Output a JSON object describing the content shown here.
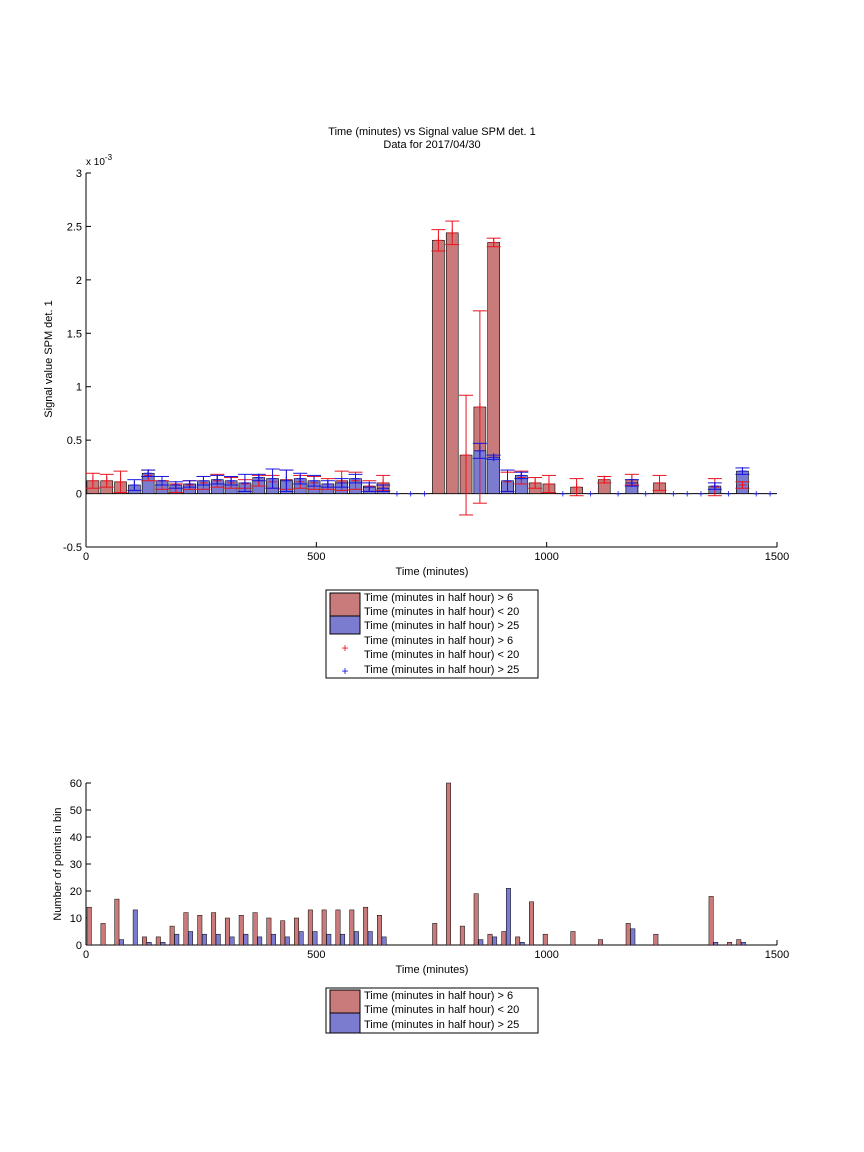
{
  "chart_data": [
    {
      "type": "bar",
      "title": "Time (minutes) vs Signal value SPM det. 1",
      "subtitle": "Data for 2017/04/30",
      "xlabel": "Time (minutes)",
      "ylabel": "Signal value SPM det. 1",
      "y_exponent_label": "x 10",
      "y_exponent_power": "-3",
      "xlim": [
        0,
        1500
      ],
      "ylim": [
        -0.5,
        3
      ],
      "x_ticks": [
        "0",
        "500",
        "1000",
        "1500"
      ],
      "y_ticks": [
        "-0.5",
        "0",
        "0.5",
        "1",
        "1.5",
        "2",
        "2.5",
        "3"
      ],
      "grid": false,
      "legend_position": "below",
      "legend": [
        "Time (minutes in half hour) > 6",
        "Time (minutes in half hour) < 20",
        "Time (minutes in half hour) > 25",
        "Time (minutes in half hour) > 6",
        "Time (minutes in half hour) < 20",
        "Time (minutes in half hour) > 25"
      ],
      "colors": {
        "red_bar": "#c97b7b",
        "blue_bar": "#7b7bd0",
        "red_marker": "#e8141e",
        "blue_marker": "#1414e0"
      },
      "series": [
        {
          "values": [
            [
              15,
              0.12,
              0.07
            ],
            [
              45,
              0.12,
              0.06
            ],
            [
              75,
              0.11,
              0.1
            ],
            [
              135,
              0.17,
              0.05
            ],
            [
              165,
              0.08,
              0.04
            ],
            [
              195,
              0.05,
              0.04
            ],
            [
              225,
              0.08,
              0.04
            ],
            [
              255,
              0.1,
              0.06
            ],
            [
              285,
              0.12,
              0.06
            ],
            [
              315,
              0.1,
              0.05
            ],
            [
              345,
              0.09,
              0.04
            ],
            [
              375,
              0.12,
              0.05
            ],
            [
              405,
              0.11,
              0.06
            ],
            [
              435,
              0.13,
              0.09
            ],
            [
              465,
              0.11,
              0.06
            ],
            [
              495,
              0.1,
              0.06
            ],
            [
              525,
              0.09,
              0.05
            ],
            [
              555,
              0.12,
              0.09
            ],
            [
              585,
              0.12,
              0.08
            ],
            [
              615,
              0.07,
              0.05
            ],
            [
              645,
              0.1,
              0.07
            ],
            [
              765,
              2.37,
              0.1
            ],
            [
              795,
              2.44,
              0.11
            ],
            [
              825,
              0.36,
              0.56
            ],
            [
              855,
              0.81,
              0.9
            ],
            [
              885,
              2.35,
              0.04
            ],
            [
              915,
              0.11,
              0.09
            ],
            [
              945,
              0.15,
              0.06
            ],
            [
              975,
              0.1,
              0.05
            ],
            [
              1005,
              0.09,
              0.08
            ],
            [
              1065,
              0.06,
              0.08
            ],
            [
              1125,
              0.13,
              0.03
            ],
            [
              1185,
              0.13,
              0.05
            ],
            [
              1245,
              0.1,
              0.07
            ],
            [
              1365,
              0.06,
              0.08
            ],
            [
              1425,
              0.08,
              0.03
            ]
          ]
        },
        {
          "values": [
            [
              105,
              0.08,
              0.05
            ],
            [
              135,
              0.19,
              0.03
            ],
            [
              165,
              0.12,
              0.04
            ],
            [
              195,
              0.08,
              0.03
            ],
            [
              225,
              0.09,
              0.03
            ],
            [
              255,
              0.12,
              0.04
            ],
            [
              285,
              0.13,
              0.04
            ],
            [
              315,
              0.12,
              0.04
            ],
            [
              345,
              0.1,
              0.08
            ],
            [
              375,
              0.15,
              0.03
            ],
            [
              405,
              0.14,
              0.09
            ],
            [
              435,
              0.12,
              0.1
            ],
            [
              465,
              0.14,
              0.05
            ],
            [
              495,
              0.12,
              0.05
            ],
            [
              525,
              0.09,
              0.03
            ],
            [
              555,
              0.1,
              0.04
            ],
            [
              585,
              0.14,
              0.04
            ],
            [
              615,
              0.06,
              0.04
            ],
            [
              645,
              0.05,
              0.03
            ],
            [
              855,
              0.4,
              0.07
            ],
            [
              885,
              0.34,
              0.02
            ],
            [
              915,
              0.12,
              0.1
            ],
            [
              945,
              0.17,
              0.03
            ],
            [
              1185,
              0.1,
              0.03
            ],
            [
              1365,
              0.07,
              0.03
            ],
            [
              1425,
              0.21,
              0.03
            ]
          ]
        }
      ]
    },
    {
      "type": "bar",
      "xlabel": "Time (minutes)",
      "ylabel": "Number of points in bin",
      "xlim": [
        0,
        1500
      ],
      "ylim": [
        0,
        60
      ],
      "x_ticks": [
        "0",
        "500",
        "1000",
        "1500"
      ],
      "y_ticks": [
        "0",
        "10",
        "20",
        "30",
        "40",
        "50",
        "60"
      ],
      "grid": false,
      "legend_position": "below",
      "legend": [
        "Time (minutes in half hour) > 6",
        "Time (minutes in half hour) < 20",
        "Time (minutes in half hour) > 25"
      ],
      "colors": {
        "red_bar": "#c97b7b",
        "blue_bar": "#7b7bd0"
      },
      "series": [
        {
          "values": [
            [
              7,
              14
            ],
            [
              37,
              8
            ],
            [
              67,
              17
            ],
            [
              127,
              3
            ],
            [
              157,
              3
            ],
            [
              187,
              7
            ],
            [
              217,
              12
            ],
            [
              247,
              11
            ],
            [
              277,
              12
            ],
            [
              307,
              10
            ],
            [
              337,
              11
            ],
            [
              367,
              12
            ],
            [
              397,
              10
            ],
            [
              427,
              9
            ],
            [
              457,
              10
            ],
            [
              487,
              13
            ],
            [
              517,
              13
            ],
            [
              547,
              13
            ],
            [
              577,
              13
            ],
            [
              607,
              14
            ],
            [
              637,
              11
            ],
            [
              757,
              8
            ],
            [
              787,
              60
            ],
            [
              817,
              7
            ],
            [
              847,
              19
            ],
            [
              877,
              4
            ],
            [
              907,
              5
            ],
            [
              937,
              3
            ],
            [
              967,
              16
            ],
            [
              997,
              4
            ],
            [
              1057,
              5
            ],
            [
              1117,
              2
            ],
            [
              1177,
              8
            ],
            [
              1237,
              4
            ],
            [
              1357,
              18
            ],
            [
              1397,
              1
            ],
            [
              1417,
              2
            ]
          ]
        },
        {
          "values": [
            [
              17,
              0
            ],
            [
              77,
              2
            ],
            [
              107,
              13
            ],
            [
              137,
              1
            ],
            [
              167,
              1
            ],
            [
              197,
              4
            ],
            [
              227,
              5
            ],
            [
              257,
              4
            ],
            [
              287,
              4
            ],
            [
              317,
              3
            ],
            [
              347,
              4
            ],
            [
              377,
              3
            ],
            [
              407,
              4
            ],
            [
              437,
              3
            ],
            [
              467,
              5
            ],
            [
              497,
              5
            ],
            [
              527,
              4
            ],
            [
              557,
              4
            ],
            [
              587,
              5
            ],
            [
              617,
              5
            ],
            [
              647,
              3
            ],
            [
              857,
              2
            ],
            [
              887,
              3
            ],
            [
              917,
              21
            ],
            [
              947,
              1
            ],
            [
              1187,
              6
            ],
            [
              1367,
              1
            ],
            [
              1427,
              1
            ]
          ]
        }
      ]
    }
  ]
}
